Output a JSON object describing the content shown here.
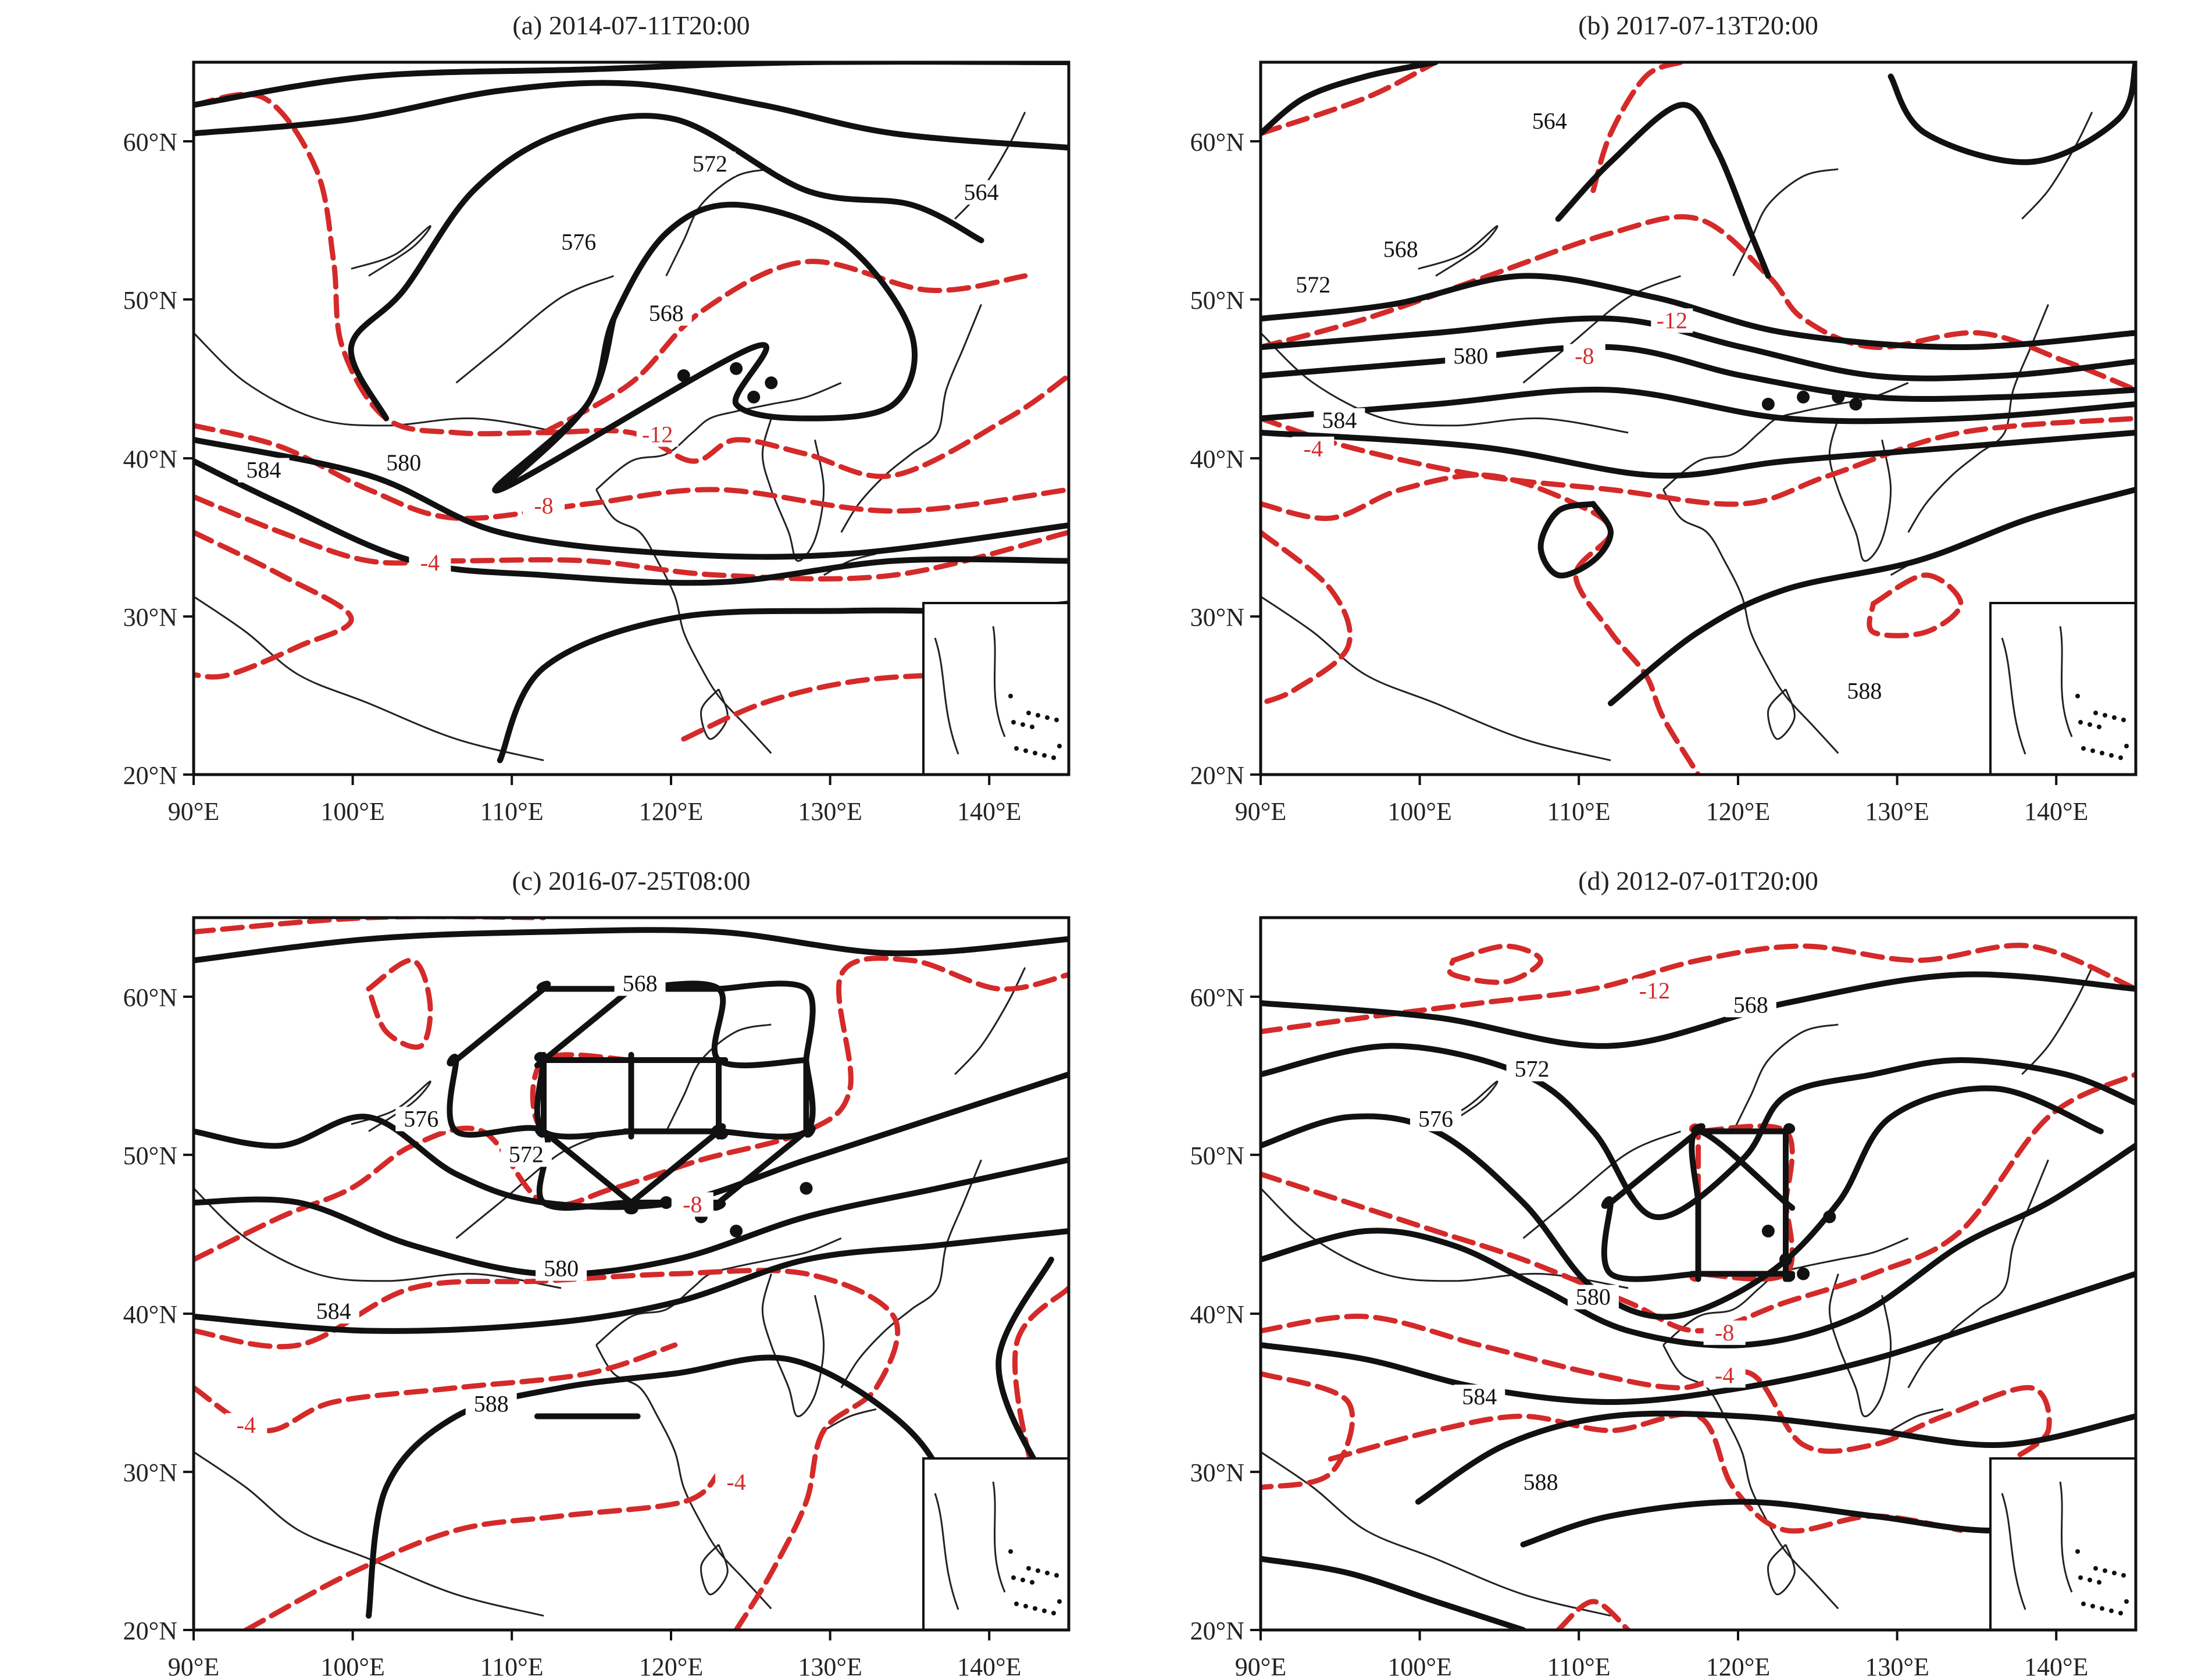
{
  "figure": {
    "panels": [
      {
        "id": "a",
        "title": "(a) 2014-07-11T20:00",
        "black_labels": [
          "572",
          "564",
          "576",
          "568",
          "580",
          "584"
        ],
        "red_labels": [
          "-12",
          "-8",
          "-4"
        ]
      },
      {
        "id": "b",
        "title": "(b) 2017-07-13T20:00",
        "black_labels": [
          "564",
          "568",
          "572",
          "580",
          "584",
          "588"
        ],
        "red_labels": [
          "-12",
          "-8",
          "-4"
        ]
      },
      {
        "id": "c",
        "title": "(c) 2016-07-25T08:00",
        "black_labels": [
          "568",
          "576",
          "572",
          "580",
          "584",
          "588"
        ],
        "red_labels": [
          "-8",
          "-4",
          "-4"
        ]
      },
      {
        "id": "d",
        "title": "(d) 2012-07-01T20:00",
        "black_labels": [
          "572",
          "568",
          "576",
          "580",
          "584",
          "588"
        ],
        "red_labels": [
          "-12",
          "-8",
          "-4"
        ]
      }
    ],
    "x_ticks": [
      "90°E",
      "100°E",
      "110°E",
      "120°E",
      "130°E",
      "140°E"
    ],
    "y_ticks": [
      "60°N",
      "50°N",
      "40°N",
      "30°N",
      "20°N"
    ],
    "colors": {
      "geopotential_contour": "#111111",
      "temperature_contour": "#d42a2a",
      "coastline": "#222222"
    }
  }
}
